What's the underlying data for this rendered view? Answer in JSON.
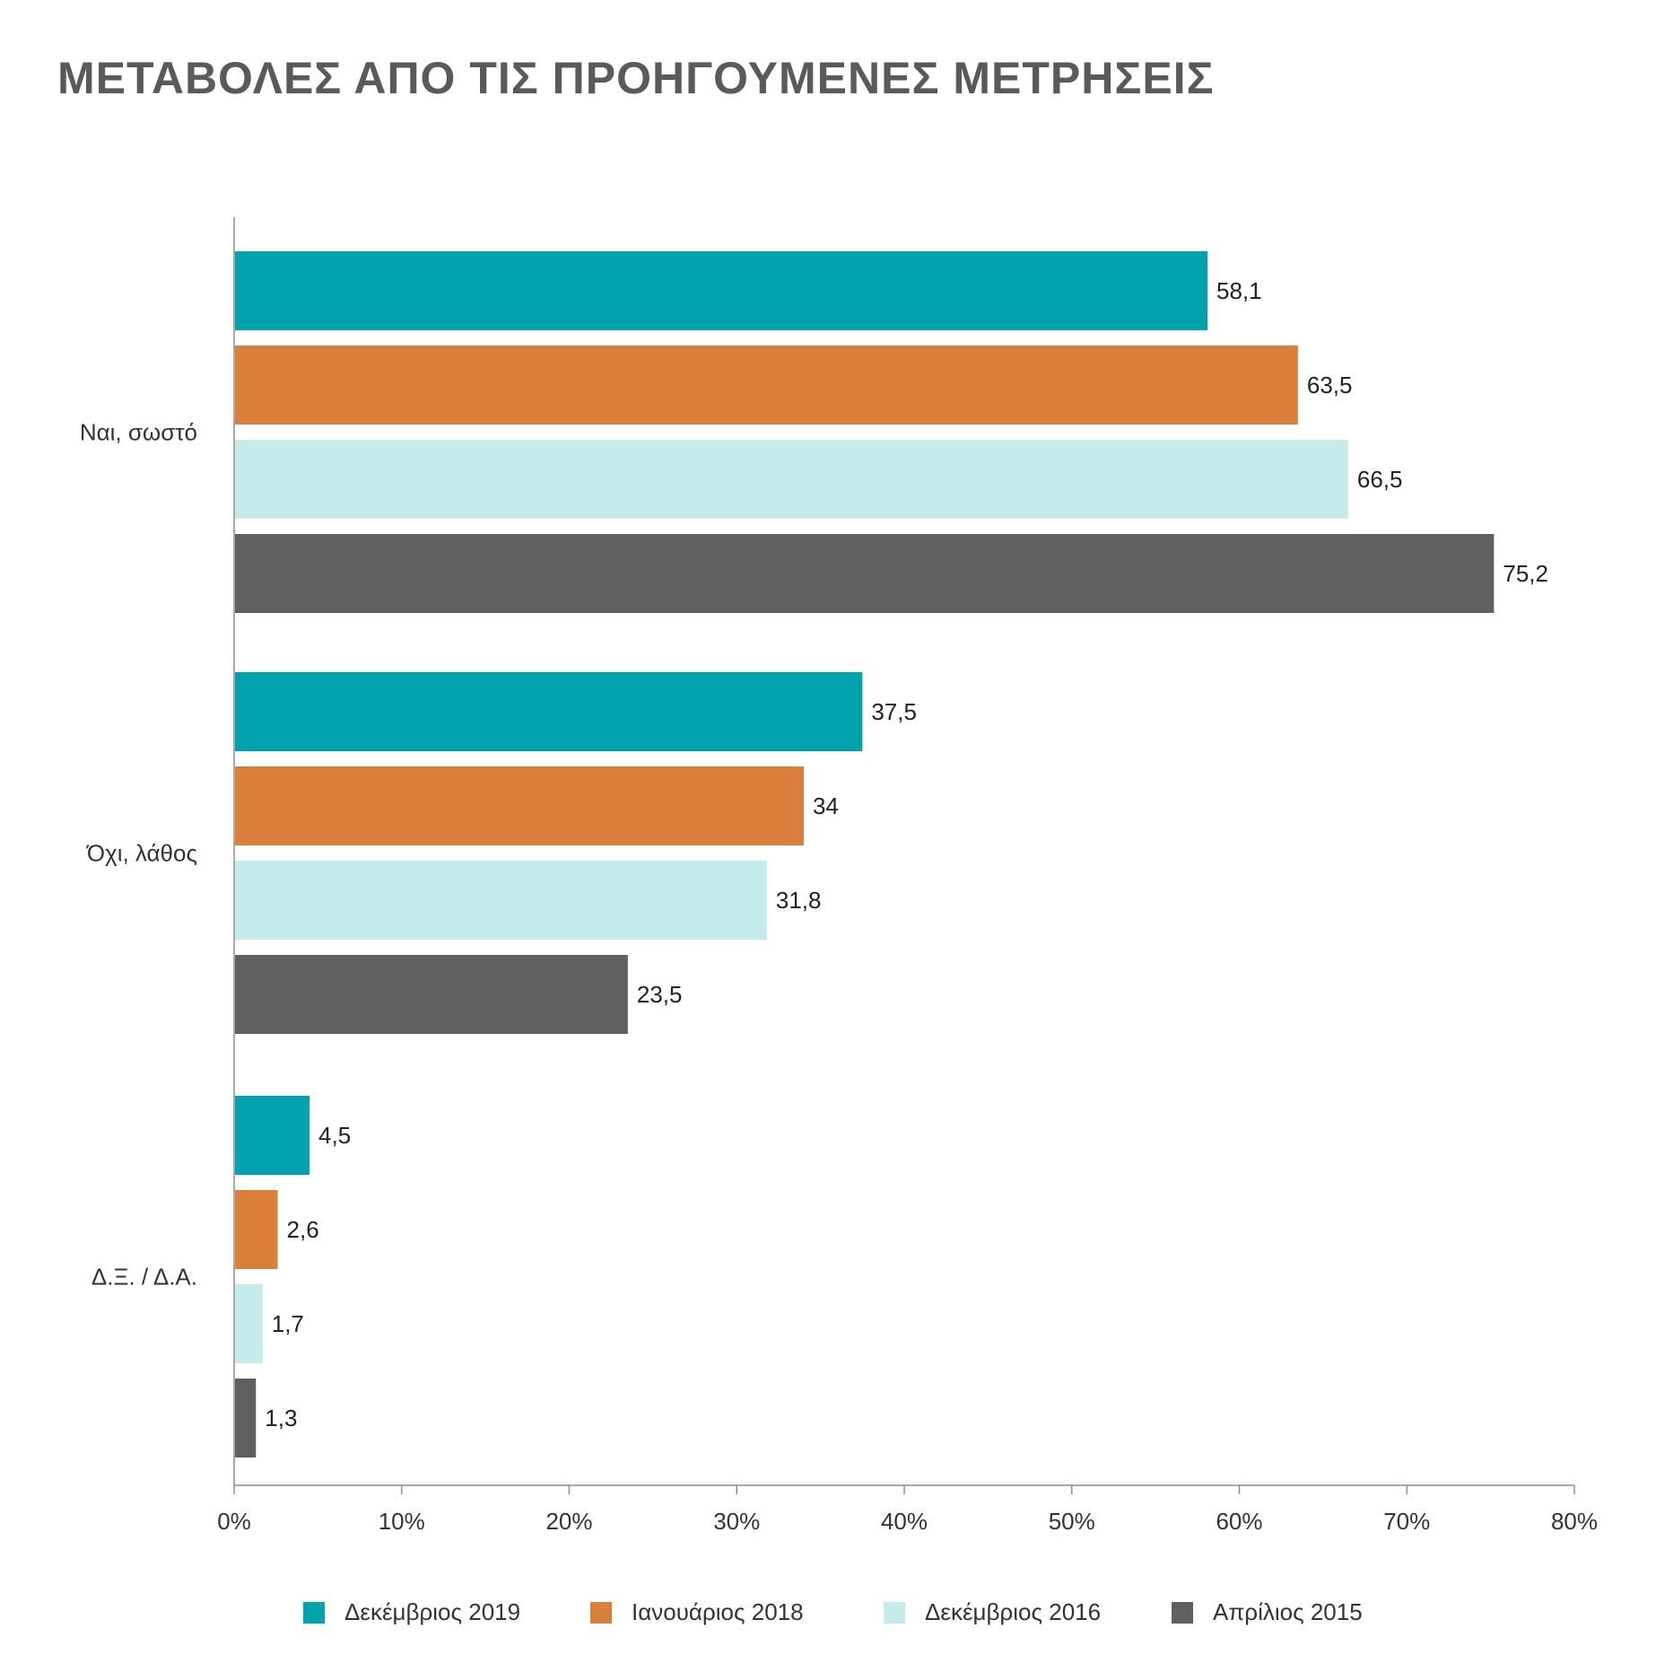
{
  "chart_data": {
    "type": "bar",
    "orientation": "horizontal",
    "title": "ΜΕΤΑΒΟΛΕΣ ΑΠΟ ΤΙΣ ΠΡΟΗΓΟΥΜΕΝΕΣ ΜΕΤΡΗΣΕΙΣ",
    "categories": [
      "Ναι, σωστό",
      "Όχι, λάθος",
      "Δ.Ξ. / Δ.Α."
    ],
    "series": [
      {
        "name": "Δεκέμβριος 2019",
        "color": "#00a2ad",
        "values": [
          58.1,
          37.5,
          4.5
        ],
        "labels": [
          "58,1",
          "37,5",
          "4,5"
        ]
      },
      {
        "name": "Ιανουάριος 2018",
        "color": "#db7f3d",
        "values": [
          63.5,
          34,
          2.6
        ],
        "labels": [
          "63,5",
          "34",
          "2,6"
        ]
      },
      {
        "name": "Δεκέμβριος 2016",
        "color": "#c4ebea",
        "values": [
          66.5,
          31.8,
          1.7
        ],
        "labels": [
          "66,5",
          "31,8",
          "1,7"
        ]
      },
      {
        "name": "Απρίλιος 2015",
        "color": "#606060",
        "values": [
          75.2,
          23.5,
          1.3
        ],
        "labels": [
          "75,2",
          "23,5",
          "1,3"
        ]
      }
    ],
    "xlim": [
      0,
      80
    ],
    "xticks": [
      0,
      10,
      20,
      30,
      40,
      50,
      60,
      70,
      80
    ],
    "xtick_labels": [
      "0%",
      "10%",
      "20%",
      "30%",
      "40%",
      "50%",
      "60%",
      "70%",
      "80%"
    ],
    "grid": false,
    "legend_position": "bottom"
  }
}
